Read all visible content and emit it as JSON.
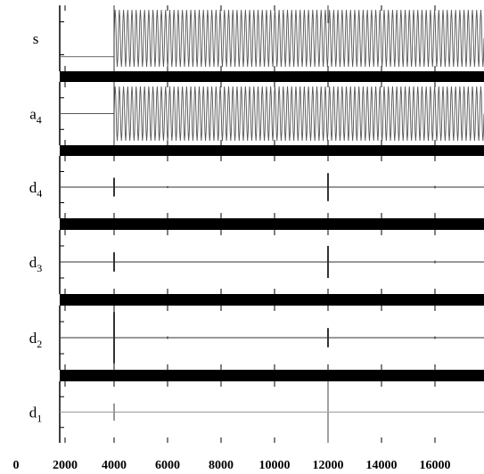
{
  "chart_data": {
    "type": "line",
    "title": "",
    "xlabel": "",
    "ylabel": "",
    "x_ticks": [
      0,
      2000,
      4000,
      6000,
      8000,
      10000,
      12000,
      14000,
      16000
    ],
    "xlim": [
      0,
      18000
    ],
    "grid": false,
    "legend": "none",
    "panels": [
      {
        "label": "s",
        "subscript": "",
        "kind": "sine",
        "start": 4000,
        "cycles": 88,
        "amplitude": 1.0,
        "baseline": 0.78,
        "color": "#555555"
      },
      {
        "label": "a",
        "subscript": "4",
        "kind": "sine",
        "start": 4000,
        "cycles": 88,
        "amplitude": 1.0,
        "baseline": 0.5,
        "color": "#555555"
      },
      {
        "label": "d",
        "subscript": "4",
        "kind": "detail",
        "color": "#333333",
        "spikes": [
          {
            "x": 4000,
            "height": 0.3
          },
          {
            "x": 6000,
            "height": 0.03
          },
          {
            "x": 12000,
            "height": 0.45
          },
          {
            "x": 16000,
            "height": 0.04
          }
        ]
      },
      {
        "label": "d",
        "subscript": "3",
        "kind": "detail",
        "color": "#333333",
        "spikes": [
          {
            "x": 4000,
            "height": 0.3
          },
          {
            "x": 12000,
            "height": 0.5
          },
          {
            "x": 16000,
            "height": 0.04
          }
        ]
      },
      {
        "label": "d",
        "subscript": "2",
        "kind": "detail",
        "color": "#333333",
        "spikes": [
          {
            "x": 4000,
            "height": 0.8
          },
          {
            "x": 6000,
            "height": 0.04
          },
          {
            "x": 12000,
            "height": 0.3
          },
          {
            "x": 16000,
            "height": 0.04
          }
        ]
      },
      {
        "label": "d",
        "subscript": "1",
        "kind": "detail",
        "color": "#999999",
        "spikes": [
          {
            "x": 4000,
            "height": 0.28
          },
          {
            "x": 12000,
            "height": 1.0
          }
        ]
      }
    ]
  }
}
